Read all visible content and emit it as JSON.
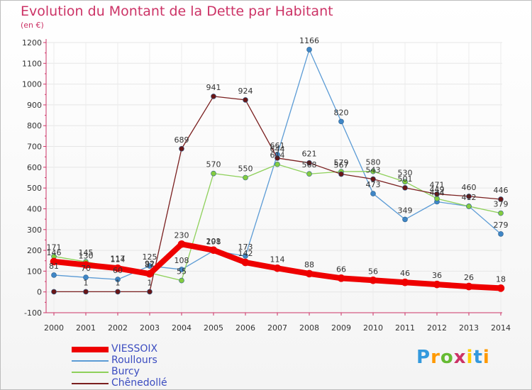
{
  "chart_data": {
    "type": "line",
    "title": "Evolution du Montant de la Dette par Habitant",
    "subtitle": "(en €)",
    "x": [
      "2000",
      "2001",
      "2002",
      "2003",
      "2004",
      "2005",
      "2006",
      "2007",
      "2008",
      "2009",
      "2010",
      "2011",
      "2012",
      "2013",
      "2014"
    ],
    "yticks": [
      -100,
      0,
      100,
      200,
      300,
      400,
      500,
      600,
      700,
      800,
      900,
      1000,
      1100,
      1200
    ],
    "ylim": [
      -100,
      1200
    ],
    "grid": true,
    "legend_position": "bottom-left",
    "series": [
      {
        "name": "VIESSOIX",
        "color": "#ee0000",
        "line_width": 8,
        "marker": "#ee0000",
        "labeled": true,
        "values": [
          146,
          130,
          114,
          87,
          230,
          201,
          142,
          114,
          88,
          66,
          56,
          46,
          36,
          26,
          18
        ]
      },
      {
        "name": "Roullours",
        "color": "#5b9bd5",
        "line_width": 1.3,
        "marker": "#3f86c6",
        "labeled": false,
        "values": [
          81,
          70,
          60,
          125,
          108,
          198,
          173,
          661,
          1166,
          820,
          473,
          349,
          434,
          412,
          279
        ]
      },
      {
        "name": "Burcy",
        "color": "#8ed05a",
        "line_width": 1.3,
        "marker": "#84cc3f",
        "labeled": false,
        "values": [
          171,
          145,
          117,
          92,
          55,
          570,
          550,
          614,
          568,
          579,
          580,
          530,
          449,
          412,
          379
        ]
      },
      {
        "name": "Chênedollé",
        "color": "#7a1f1f",
        "line_width": 1.3,
        "marker": "#6a1616",
        "labeled": false,
        "values": [
          1,
          1,
          1,
          1,
          689,
          941,
          924,
          644,
          621,
          567,
          543,
          501,
          471,
          460,
          446
        ]
      }
    ],
    "data_labels": [
      {
        "x": 0,
        "text": "146",
        "series": 0
      },
      {
        "x": 0,
        "text": "171",
        "series": 2
      },
      {
        "x": 0,
        "text": "81",
        "series": 1
      },
      {
        "x": 1,
        "text": "130",
        "series": 0
      },
      {
        "x": 1,
        "text": "145",
        "series": 2
      },
      {
        "x": 1,
        "text": "70",
        "series": 1
      },
      {
        "x": 1,
        "text": "1",
        "series": 3
      },
      {
        "x": 2,
        "text": "114",
        "series": 0
      },
      {
        "x": 2,
        "text": "117",
        "series": 2
      },
      {
        "x": 2,
        "text": "60",
        "series": 1
      },
      {
        "x": 2,
        "text": "1",
        "series": 3
      },
      {
        "x": 3,
        "text": "125",
        "series": 1
      },
      {
        "x": 3,
        "text": "92",
        "series": 2
      },
      {
        "x": 3,
        "text": "87",
        "series": 0
      },
      {
        "x": 3,
        "text": "1",
        "series": 3
      },
      {
        "x": 4,
        "text": "689",
        "series": 3
      },
      {
        "x": 4,
        "text": "230",
        "series": 0
      },
      {
        "x": 4,
        "text": "108",
        "series": 1
      },
      {
        "x": 4,
        "text": "55",
        "series": 2
      },
      {
        "x": 5,
        "text": "941",
        "series": 3
      },
      {
        "x": 5,
        "text": "570",
        "series": 2
      },
      {
        "x": 5,
        "text": "201",
        "series": 0
      },
      {
        "x": 5,
        "text": "198",
        "series": 1
      },
      {
        "x": 6,
        "text": "924",
        "series": 3
      },
      {
        "x": 6,
        "text": "550",
        "series": 2
      },
      {
        "x": 6,
        "text": "173",
        "series": 1
      },
      {
        "x": 6,
        "text": "142",
        "series": 0
      },
      {
        "x": 7,
        "text": "661",
        "series": 1
      },
      {
        "x": 7,
        "text": "644",
        "series": 3
      },
      {
        "x": 7,
        "text": "614",
        "series": 2
      },
      {
        "x": 7,
        "text": "114",
        "series": 0
      },
      {
        "x": 8,
        "text": "1166",
        "series": 1
      },
      {
        "x": 8,
        "text": "621",
        "series": 3
      },
      {
        "x": 8,
        "text": "568",
        "series": 2
      },
      {
        "x": 8,
        "text": "88",
        "series": 0
      },
      {
        "x": 9,
        "text": "820",
        "series": 1
      },
      {
        "x": 9,
        "text": "579",
        "series": 2
      },
      {
        "x": 9,
        "text": "567",
        "series": 3
      },
      {
        "x": 9,
        "text": "66",
        "series": 0
      },
      {
        "x": 10,
        "text": "580",
        "series": 2
      },
      {
        "x": 10,
        "text": "543",
        "series": 3
      },
      {
        "x": 10,
        "text": "473",
        "series": 1
      },
      {
        "x": 10,
        "text": "56",
        "series": 0
      },
      {
        "x": 11,
        "text": "530",
        "series": 2
      },
      {
        "x": 11,
        "text": "501",
        "series": 3
      },
      {
        "x": 11,
        "text": "349",
        "series": 1
      },
      {
        "x": 11,
        "text": "46",
        "series": 0
      },
      {
        "x": 12,
        "text": "471",
        "series": 3
      },
      {
        "x": 12,
        "text": "449",
        "series": 2
      },
      {
        "x": 12,
        "text": "434",
        "series": 1
      },
      {
        "x": 12,
        "text": "36",
        "series": 0
      },
      {
        "x": 13,
        "text": "460",
        "series": 3
      },
      {
        "x": 13,
        "text": "412",
        "series": 2
      },
      {
        "x": 13,
        "text": "26",
        "series": 0
      },
      {
        "x": 14,
        "text": "446",
        "series": 3
      },
      {
        "x": 14,
        "text": "379",
        "series": 2
      },
      {
        "x": 14,
        "text": "279",
        "series": 1
      },
      {
        "x": 14,
        "text": "18",
        "series": 0
      }
    ]
  },
  "logo": {
    "letters": [
      "P",
      "r",
      "o",
      "x",
      "i",
      "t",
      "i"
    ],
    "colors": [
      "#3399dd",
      "#ff9900",
      "#66bb33",
      "#cc3366",
      "#ffcc00",
      "#3399dd",
      "#ff9900"
    ]
  }
}
